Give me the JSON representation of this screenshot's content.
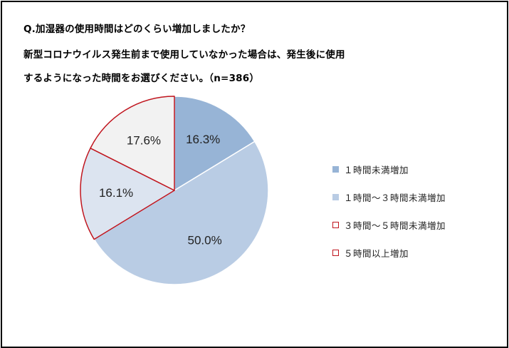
{
  "question": {
    "line1": "Q.加湿器の使用時間はどのくらい増加しましたか？",
    "line2": "新型コロナウイルス発生前まで使用していなかった場合は、発生後に使用",
    "line3": "するようになった時間をお選びください。（n=386）"
  },
  "chart_data": {
    "type": "pie",
    "title": "Q.加湿器の使用時間はどのくらい増加しましたか？新型コロナウイルス発生前まで使用していなかった場合は、発生後に使用するようになった時間をお選びください。（n=386）",
    "start_angle": "12 o'clock",
    "direction": "clockwise",
    "legend_position": "right",
    "slices": [
      {
        "name": "１時間未満増加",
        "value": 16.3,
        "label": "16.3%",
        "fill": "#97b4d6",
        "stroke": "#ffffff"
      },
      {
        "name": "１時間～３時間未満増加",
        "value": 50.0,
        "label": "50.0%",
        "fill": "#b9cce4",
        "stroke": "#ffffff"
      },
      {
        "name": "３時間～５時間未満増加",
        "value": 16.1,
        "label": "16.1%",
        "fill": "#dce4f0",
        "stroke": "#c0151e"
      },
      {
        "name": "５時間以上増加",
        "value": 17.6,
        "label": "17.6%",
        "fill": "#f2f2f2",
        "stroke": "#c0151e"
      }
    ]
  }
}
